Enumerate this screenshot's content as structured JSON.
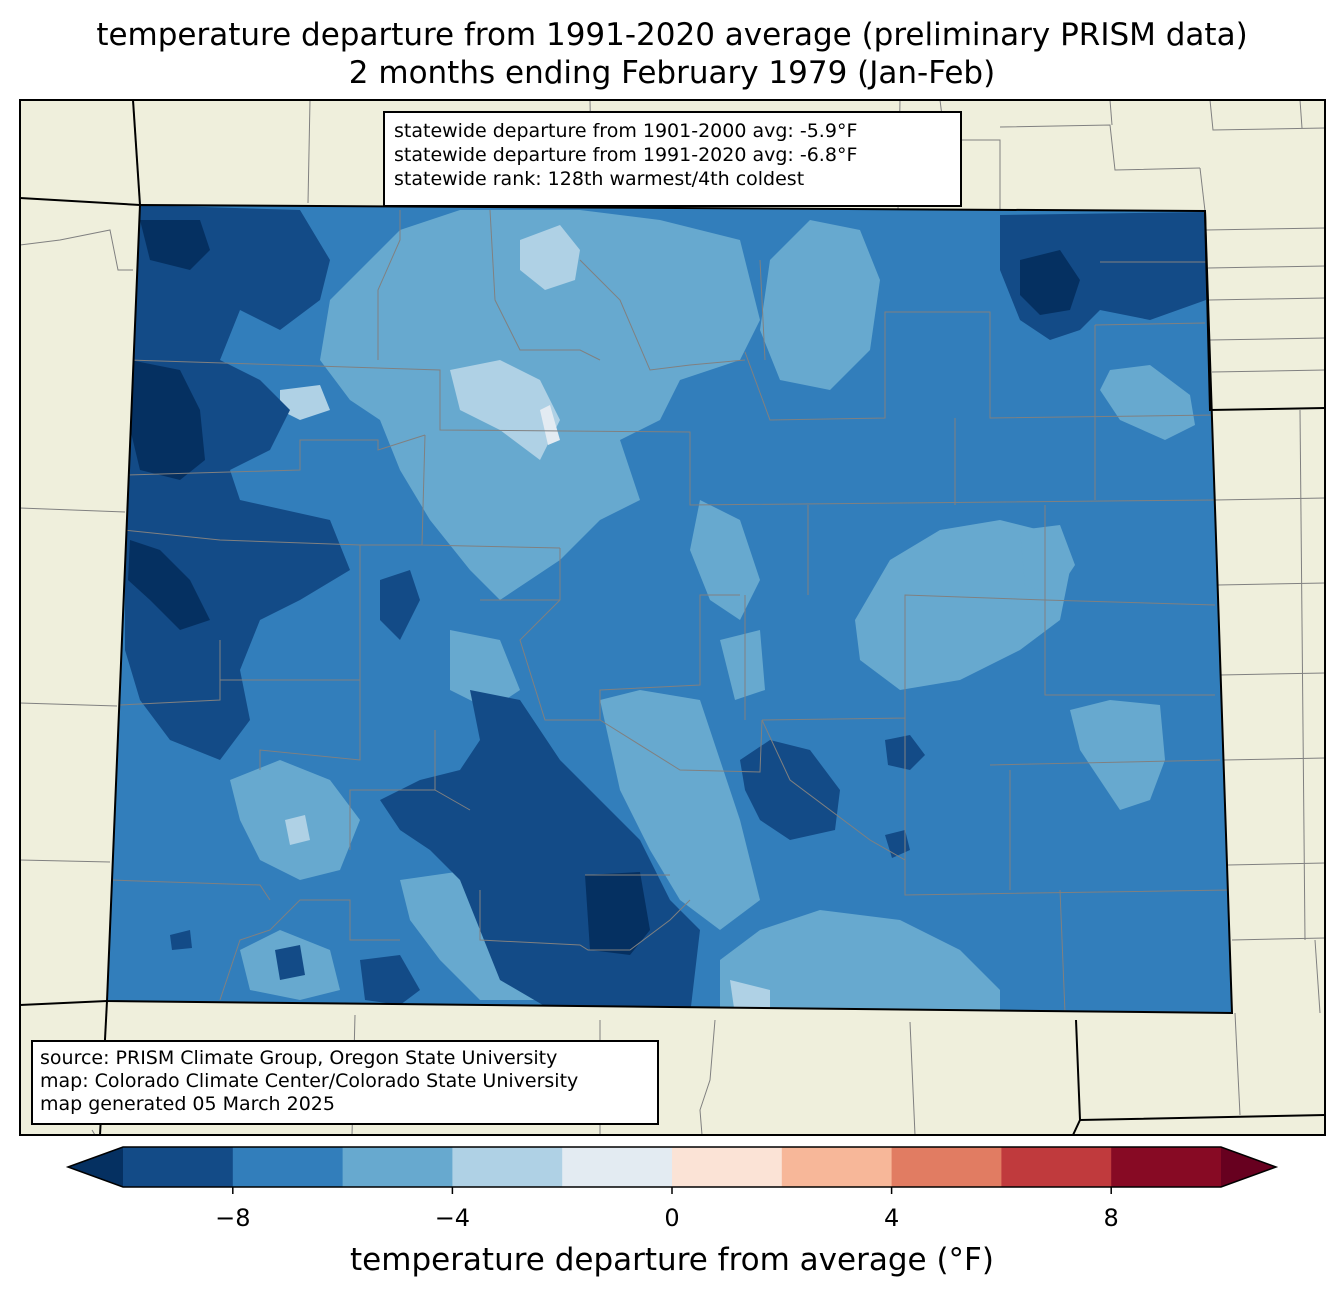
{
  "title": {
    "line1": "temperature departure from 1991-2020 average (preliminary PRISM data)",
    "line2": "2 months ending February 1979 (Jan-Feb)"
  },
  "stats": {
    "line1": "statewide departure from 1901-2000 avg: -5.9°F",
    "line2": "statewide departure from 1991-2020 avg: -6.8°F",
    "line3": "statewide rank: 128th warmest/4th coldest"
  },
  "source": {
    "line1": "source: PRISM Climate Group, Oregon State University",
    "line2": "map: Colorado Climate Center/Colorado State University",
    "line3": "map generated 05 March 2025"
  },
  "colorbar": {
    "label": "temperature departure from average (°F)",
    "ticks": [
      "−8",
      "−4",
      "0",
      "4",
      "8"
    ],
    "tick_values": [
      -8,
      -4,
      0,
      4,
      8
    ],
    "range": [
      -10,
      10
    ],
    "bin_edges": [
      -10,
      -8,
      -6,
      -4,
      -2,
      0,
      2,
      4,
      6,
      8,
      10
    ],
    "colors": [
      "#134b87",
      "#327ebb",
      "#67a9cf",
      "#afd1e5",
      "#e3ebf2",
      "#fbe3d6",
      "#f7b799",
      "#e17c62",
      "#c03a3d",
      "#870a24"
    ],
    "extend_low_color": "#053061",
    "extend_high_color": "#67001f"
  },
  "colors": {
    "land": "#efefdc",
    "state_line": "#000000",
    "county_line": "#808080"
  }
}
